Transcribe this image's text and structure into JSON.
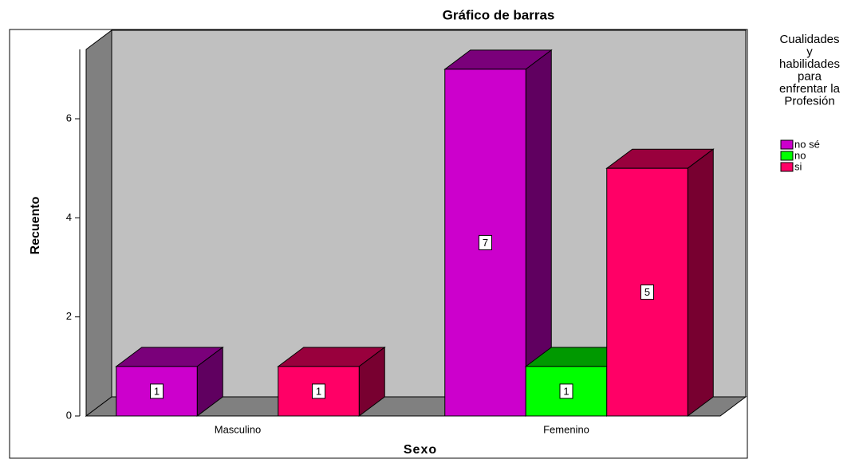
{
  "chart_data": {
    "type": "bar3d",
    "title": "Gráfico de barras",
    "x_label": "Sexo",
    "y_label": "Recuento",
    "legend_title": [
      "Cualidades",
      "y",
      "habilidades",
      "para",
      "enfrentar la",
      "Profesión"
    ],
    "categories": [
      "Masculino",
      "Femenino"
    ],
    "series": [
      {
        "name": "no sé",
        "color": "#cc00cc",
        "values": [
          1,
          7
        ]
      },
      {
        "name": "no",
        "color": "#00ff00",
        "values": [
          null,
          1
        ]
      },
      {
        "name": "si",
        "color": "#ff0066",
        "values": [
          1,
          5
        ]
      }
    ],
    "ylim": [
      0,
      7.4
    ],
    "yticks": [
      0,
      2,
      4,
      6
    ],
    "legend": "right"
  }
}
